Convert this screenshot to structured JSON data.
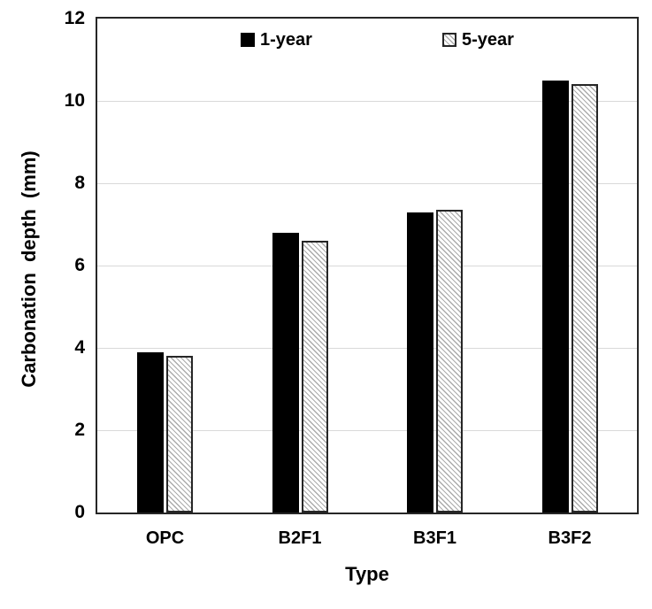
{
  "chart_data": {
    "type": "bar",
    "title": "",
    "categories": [
      "OPC",
      "B2F1",
      "B3F1",
      "B3F2"
    ],
    "series": [
      {
        "name": "1-year",
        "fill": "solid",
        "color": "#000000",
        "values": [
          3.9,
          6.8,
          7.3,
          10.5
        ]
      },
      {
        "name": "5-year",
        "fill": "diagonal-hatch",
        "color": "#ffffff",
        "hatch_color": "#ababab",
        "border_color": "#262626",
        "values": [
          3.8,
          6.6,
          7.35,
          10.4
        ]
      }
    ],
    "xlabel": "Type",
    "ylabel": "Carbonation depth (mm)",
    "ylim": [
      0,
      12
    ],
    "yticks": [
      0,
      2,
      4,
      6,
      8,
      10,
      12
    ],
    "grid": "horizontal-only",
    "legend_position": "top-inside",
    "colors": {
      "gridline": "#d9d9d9",
      "axis_border": "#262626",
      "text": "#000000",
      "background": "#ffffff"
    }
  }
}
